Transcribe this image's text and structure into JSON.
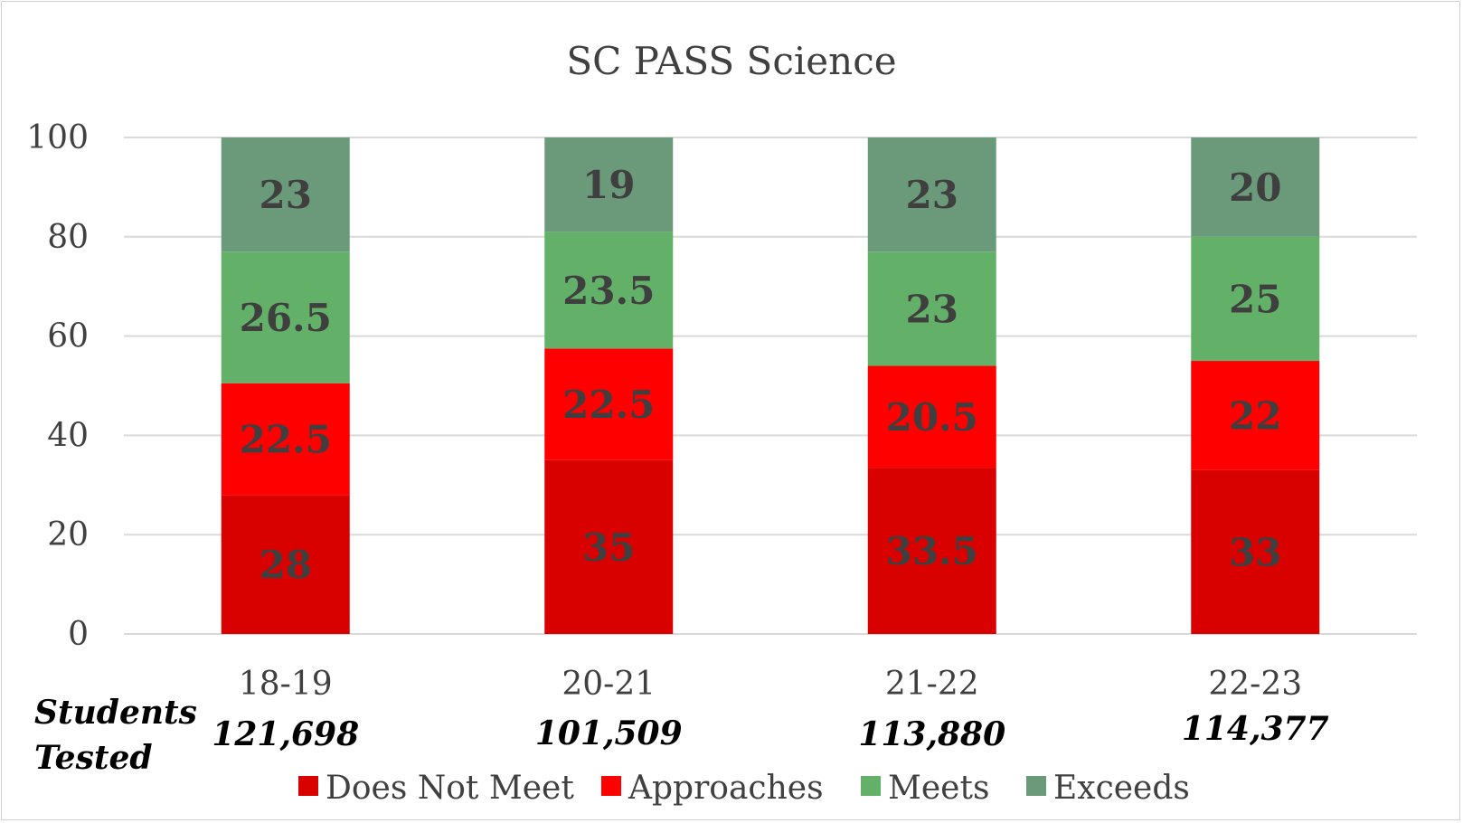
{
  "chart_data": {
    "type": "bar",
    "stacked": true,
    "title": "SC PASS Science",
    "xlabel": "",
    "ylabel": "",
    "ylim": [
      0,
      100
    ],
    "yticks": [
      "0",
      "20",
      "40",
      "60",
      "80",
      "100"
    ],
    "grid": true,
    "legend_position": "bottom",
    "categories": [
      "18-19",
      "20-21",
      "21-22",
      "22-23"
    ],
    "series": [
      {
        "name": "Does Not Meet",
        "color": "#d90000",
        "values": [
          28,
          35,
          33.5,
          33
        ],
        "labels": [
          "28",
          "35",
          "33.5",
          "33"
        ]
      },
      {
        "name": "Approaches",
        "color": "#ff0000",
        "values": [
          22.5,
          22.5,
          20.5,
          22
        ],
        "labels": [
          "22.5",
          "22.5",
          "20.5",
          "22"
        ]
      },
      {
        "name": "Meets",
        "color": "#63b168",
        "values": [
          26.5,
          23.5,
          23,
          25
        ],
        "labels": [
          "26.5",
          "23.5",
          "23",
          "25"
        ]
      },
      {
        "name": "Exceeds",
        "color": "#6b9a7a",
        "values": [
          23,
          19,
          23,
          20
        ],
        "labels": [
          "23",
          "19",
          "23",
          "20"
        ]
      }
    ],
    "students_tested": {
      "label_line1": "Students",
      "label_line2": "Tested",
      "values": [
        "121,698",
        "101,509",
        "113,880",
        "114,377"
      ]
    }
  }
}
